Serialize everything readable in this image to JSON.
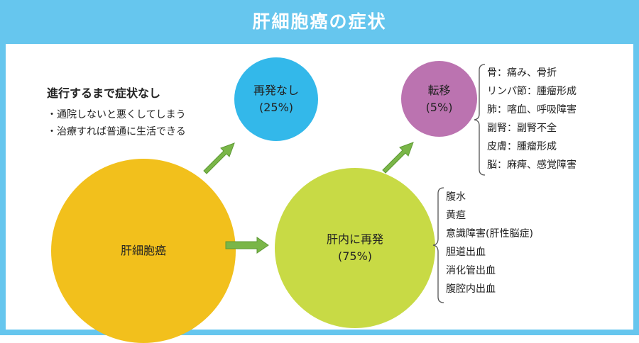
{
  "header": {
    "title": "肝細胞癌の症状"
  },
  "note": {
    "title": "進行するまで症状なし",
    "items": [
      "・通院しないと悪くしてしまう",
      "・治療すれば普通に生活できる"
    ]
  },
  "nodes": {
    "main": {
      "label": "肝細胞癌"
    },
    "no_recur": {
      "label": "再発なし",
      "percent": "(25%)"
    },
    "local": {
      "label": "肝内に再発",
      "percent": "(75%)"
    },
    "metastasis": {
      "label": "転移",
      "percent": "(5%)"
    }
  },
  "metastasis_list": [
    "骨：痛み、骨折",
    "リンパ節：腫瘤形成",
    "肺：喀血、呼吸障害",
    "副腎：副腎不全",
    "皮膚：腫瘤形成",
    "脳：麻痺、感覚障害"
  ],
  "local_list": [
    "腹水",
    "黄疸",
    "意識障害(肝性脳症)",
    "胆道出血",
    "消化管出血",
    "腹腔内出血"
  ],
  "colors": {
    "frame": "#66c6ee",
    "main": "#f2c01c",
    "no_recur": "#33b8ea",
    "local": "#c8da45",
    "metastasis": "#bb73b0",
    "arrow": "#7ab648"
  }
}
